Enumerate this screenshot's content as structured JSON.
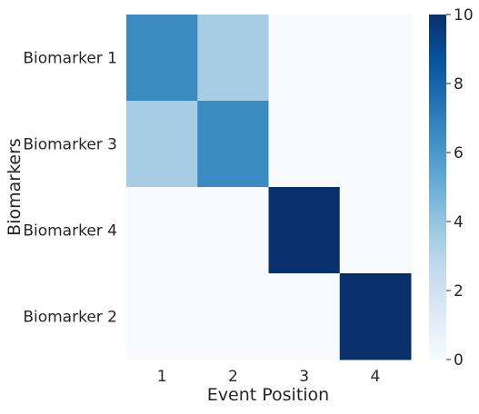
{
  "chart_data": {
    "type": "heatmap",
    "xlabel": "Event Position",
    "ylabel": "Biomarkers",
    "x_categories": [
      "1",
      "2",
      "3",
      "4"
    ],
    "y_categories": [
      "Biomarker 1",
      "Biomarker 3",
      "Biomarker 4",
      "Biomarker 2"
    ],
    "values": [
      [
        6.5,
        3.5,
        0,
        0
      ],
      [
        3.5,
        6.5,
        0,
        0
      ],
      [
        0,
        0,
        10,
        0
      ],
      [
        0,
        0,
        0,
        10
      ]
    ],
    "colorbar": {
      "min": 0,
      "max": 10,
      "ticks": [
        "0",
        "2",
        "4",
        "6",
        "8",
        "10"
      ],
      "colormap": "Blues"
    },
    "grid": false
  }
}
